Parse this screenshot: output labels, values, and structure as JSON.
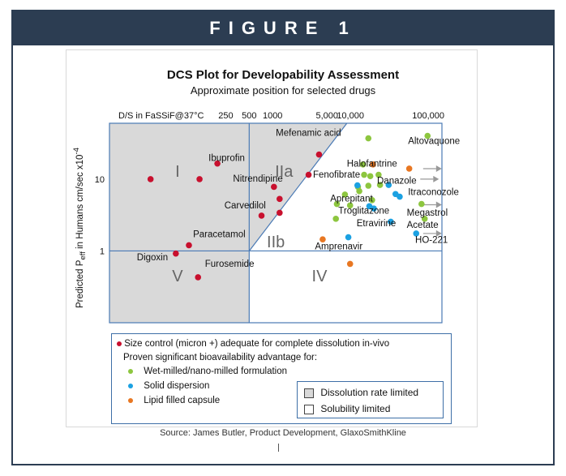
{
  "banner": "FIGURE 1",
  "colors": {
    "banner_bg": "#2c3d52",
    "red": "#c8102e",
    "green": "#8dc63f",
    "blue": "#1ba1e2",
    "orange": "#e87722",
    "shade": "#d9d9d9",
    "axis": "#4a7ab5"
  },
  "chart_data": {
    "type": "scatter",
    "title": "DCS Plot for Developability Assessment",
    "subtitle": "Approximate position for selected drugs",
    "top_axis_label": "D/S in FaSSiF@37°C",
    "top_ticks": [
      {
        "label": "250",
        "x": 250
      },
      {
        "label": "500",
        "x": 500
      },
      {
        "label": "1000",
        "x": 1000
      },
      {
        "label": "5,000",
        "x": 5000
      },
      {
        "label": "10,000",
        "x": 10000
      },
      {
        "label": "100,000",
        "x": 100000
      }
    ],
    "ylabel": "Predicted P_eff in Humans cm/sec x10^-4",
    "y_ticks": [
      {
        "label": "10",
        "y": 10
      },
      {
        "label": "1",
        "y": 1
      }
    ],
    "scale": "log-log",
    "xlim": [
      8,
      150000
    ],
    "ylim": [
      0.1,
      60
    ],
    "boundaries": {
      "x_dose_solubility": 500,
      "y_permeability": 1
    },
    "zones": [
      {
        "label": "I",
        "x": 60,
        "y": 13
      },
      {
        "label": "IIa",
        "x": 1400,
        "y": 13
      },
      {
        "label": "IIb",
        "x": 1100,
        "y": 1.35
      },
      {
        "label": "IV",
        "x": 4000,
        "y": 0.45
      },
      {
        "label": "V",
        "x": 60,
        "y": 0.45
      }
    ],
    "drug_labels": [
      {
        "text": "Mefenamic acid",
        "x": 1100,
        "y": 40
      },
      {
        "text": "Ibuprofin",
        "x": 150,
        "y": 18
      },
      {
        "text": "Halofantrine",
        "x": 9000,
        "y": 15
      },
      {
        "text": "Altovaquone",
        "x": 55000,
        "y": 31
      },
      {
        "text": "Nitrendipine",
        "x": 310,
        "y": 9.2
      },
      {
        "text": "Fenofibrate",
        "x": 3300,
        "y": 10.5
      },
      {
        "text": "Danazole",
        "x": 22000,
        "y": 8.7
      },
      {
        "text": "Itraconozole",
        "x": 55000,
        "y": 6.0
      },
      {
        "text": "Carvedilol",
        "x": 240,
        "y": 3.9
      },
      {
        "text": "Aprepitant",
        "x": 5500,
        "y": 4.9
      },
      {
        "text": "Troglitazone",
        "x": 7000,
        "y": 3.3
      },
      {
        "text": "Megastrol",
        "x": 53000,
        "y": 3.1
      },
      {
        "text": "Etravirine",
        "x": 12000,
        "y": 2.2
      },
      {
        "text": "Acetate",
        "x": 53000,
        "y": 2.1
      },
      {
        "text": "Paracetamol",
        "x": 95,
        "y": 1.55
      },
      {
        "text": "Amprenavir",
        "x": 3500,
        "y": 1.05
      },
      {
        "text": "HO-221",
        "x": 68000,
        "y": 1.3
      },
      {
        "text": "Digoxin",
        "x": 18,
        "y": 0.74
      },
      {
        "text": "Furosemide",
        "x": 135,
        "y": 0.6
      }
    ],
    "series": [
      {
        "name": "Size control (micron +) adequate for complete dissolution in-vivo",
        "color": "#c8102e",
        "points": [
          [
            27,
            10
          ],
          [
            115,
            10
          ],
          [
            195,
            16.5
          ],
          [
            1040,
            7.8
          ],
          [
            1230,
            5.3
          ],
          [
            720,
            3.1
          ],
          [
            1230,
            3.4
          ],
          [
            2900,
            11.5
          ],
          [
            3950,
            22
          ],
          [
            84,
            1.2
          ],
          [
            57,
            0.92
          ],
          [
            110,
            0.43
          ]
        ]
      },
      {
        "name": "Wet-milled/nano-milled formulation",
        "color": "#8dc63f",
        "points": [
          [
            17000,
            37
          ],
          [
            98000,
            40
          ],
          [
            14500,
            16
          ],
          [
            15000,
            11.5
          ],
          [
            18000,
            11
          ],
          [
            23000,
            11.5
          ],
          [
            24000,
            8.3
          ],
          [
            17000,
            8.1
          ],
          [
            8500,
            6.1
          ],
          [
            12500,
            7.8
          ],
          [
            13000,
            6.8
          ],
          [
            6700,
            4.5
          ],
          [
            19000,
            5.1
          ],
          [
            9900,
            4.3
          ],
          [
            6500,
            2.8
          ],
          [
            82000,
            4.5
          ],
          [
            90000,
            2.8
          ]
        ]
      },
      {
        "name": "Solid dispersion",
        "color": "#1ba1e2",
        "points": [
          [
            12300,
            8.2
          ],
          [
            31000,
            8.3
          ],
          [
            38000,
            6.2
          ],
          [
            43000,
            5.7
          ],
          [
            17500,
            4.2
          ],
          [
            20000,
            3.9
          ],
          [
            33000,
            2.55
          ],
          [
            9400,
            1.55
          ],
          [
            70000,
            1.75
          ]
        ]
      },
      {
        "name": "Lipid filled capsule",
        "color": "#e87722",
        "points": [
          [
            19500,
            16
          ],
          [
            57000,
            14
          ],
          [
            4400,
            1.45
          ],
          [
            9900,
            0.66
          ]
        ]
      }
    ],
    "arrows": [
      [
        86000,
        14
      ],
      [
        79000,
        10
      ],
      [
        86000,
        4.4
      ],
      [
        86000,
        1.75
      ]
    ]
  },
  "legend": {
    "red_label": "Size control (micron +) adequate for complete dissolution in-vivo",
    "intro": "Proven significant bioavailability advantage for:",
    "green_label": "Wet-milled/nano-milled formulation",
    "blue_label": "Solid dispersion",
    "orange_label": "Lipid filled capsule",
    "shaded_label": "Dissolution rate limited",
    "white_label": "Solubility limited"
  },
  "source": "Source:  James Butler, Product Development,  GlaxoSmithKline"
}
